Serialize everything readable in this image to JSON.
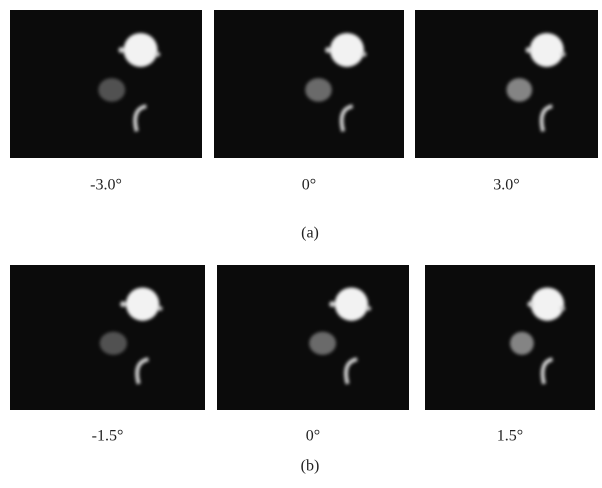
{
  "figures": [
    {
      "caption": "(a)",
      "panels": [
        {
          "label": "-3.0°"
        },
        {
          "label": "0°"
        },
        {
          "label": "3.0°"
        }
      ]
    },
    {
      "caption": "(b)",
      "panels": [
        {
          "label": "-1.5°"
        },
        {
          "label": "0°"
        },
        {
          "label": "1.5°"
        }
      ]
    }
  ]
}
